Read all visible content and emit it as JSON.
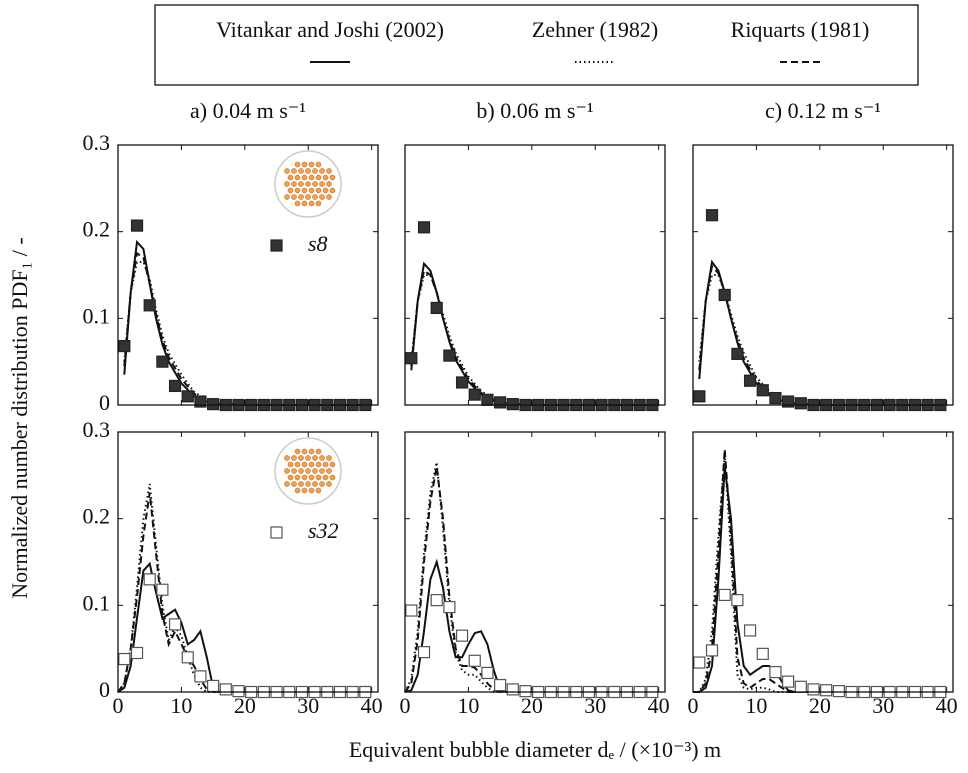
{
  "legend": [
    {
      "name": "Vitankar and Joshi (2002)",
      "style": "solid"
    },
    {
      "name": "Zehner (1982)",
      "style": "dotted"
    },
    {
      "name": "Riquarts (1981)",
      "style": "dashed"
    }
  ],
  "ylabel": "Normalized number distribution PDF₁ / -",
  "xlabel": "Equivalent bubble diameter dₑ / (×10⁻³) m",
  "chart_data": [
    {
      "type": "line",
      "title": "a) 0.04 m s⁻¹",
      "xlim": [
        0,
        41
      ],
      "ylim": [
        0,
        0.3
      ],
      "xticks": [
        0,
        10,
        20,
        30,
        40
      ],
      "yticks": [
        0,
        0.1,
        0.2,
        0.3
      ],
      "xtick_labels": false,
      "ytick_labels": true,
      "inset_icon": true,
      "markers": {
        "name": "s8",
        "fill": "#333333",
        "x": [
          1,
          3,
          5,
          7,
          9,
          11,
          13,
          15,
          17,
          19,
          21,
          23,
          25,
          27,
          29,
          31,
          33,
          35,
          37,
          39
        ],
        "values": [
          0.068,
          0.207,
          0.115,
          0.05,
          0.022,
          0.01,
          0.004,
          0.001,
          0,
          0,
          0,
          0,
          0,
          0,
          0,
          0,
          0,
          0,
          0,
          0
        ]
      },
      "series": [
        {
          "style": "solid",
          "x": [
            1,
            2,
            3,
            4,
            5,
            6,
            7,
            8,
            10,
            12,
            14,
            16,
            20,
            40
          ],
          "values": [
            0.035,
            0.13,
            0.188,
            0.18,
            0.14,
            0.1,
            0.07,
            0.05,
            0.025,
            0.01,
            0.004,
            0.001,
            0,
            0
          ]
        },
        {
          "style": "dotted",
          "x": [
            1,
            2,
            3,
            4,
            5,
            6,
            7,
            8,
            10,
            12,
            14,
            16,
            20,
            40
          ],
          "values": [
            0.05,
            0.13,
            0.165,
            0.165,
            0.145,
            0.11,
            0.08,
            0.06,
            0.035,
            0.015,
            0.006,
            0.002,
            0,
            0
          ]
        },
        {
          "style": "dashed",
          "x": [
            1,
            2,
            3,
            4,
            5,
            6,
            7,
            8,
            10,
            12,
            14,
            16,
            20,
            40
          ],
          "values": [
            0.045,
            0.13,
            0.175,
            0.17,
            0.14,
            0.105,
            0.075,
            0.055,
            0.03,
            0.013,
            0.005,
            0.002,
            0,
            0
          ]
        }
      ]
    },
    {
      "type": "line",
      "title": "b) 0.06 m s⁻¹",
      "xlim": [
        0,
        41
      ],
      "ylim": [
        0,
        0.3
      ],
      "xticks": [
        0,
        10,
        20,
        30,
        40
      ],
      "yticks": [
        0,
        0.1,
        0.2,
        0.3
      ],
      "xtick_labels": false,
      "ytick_labels": false,
      "inset_icon": false,
      "markers": {
        "fill": "#333333",
        "x": [
          1,
          3,
          5,
          7,
          9,
          11,
          13,
          15,
          17,
          19,
          21,
          23,
          25,
          27,
          29,
          31,
          33,
          35,
          37,
          39
        ],
        "values": [
          0.054,
          0.205,
          0.112,
          0.057,
          0.026,
          0.012,
          0.006,
          0.003,
          0.001,
          0,
          0,
          0,
          0,
          0,
          0,
          0,
          0,
          0,
          0,
          0
        ]
      },
      "series": [
        {
          "style": "solid",
          "x": [
            1,
            2,
            3,
            4,
            5,
            6,
            7,
            8,
            10,
            12,
            14,
            16,
            20,
            40
          ],
          "values": [
            0.04,
            0.12,
            0.163,
            0.155,
            0.13,
            0.1,
            0.073,
            0.052,
            0.027,
            0.012,
            0.005,
            0.002,
            0,
            0
          ]
        },
        {
          "style": "dotted",
          "x": [
            1,
            2,
            3,
            4,
            5,
            6,
            7,
            8,
            10,
            12,
            14,
            16,
            20,
            40
          ],
          "values": [
            0.05,
            0.12,
            0.15,
            0.15,
            0.13,
            0.105,
            0.08,
            0.06,
            0.033,
            0.016,
            0.007,
            0.003,
            0,
            0
          ]
        },
        {
          "style": "dashed",
          "x": [
            1,
            2,
            3,
            4,
            5,
            6,
            7,
            8,
            10,
            12,
            14,
            16,
            20,
            40
          ],
          "values": [
            0.045,
            0.12,
            0.155,
            0.15,
            0.13,
            0.1,
            0.075,
            0.055,
            0.03,
            0.014,
            0.006,
            0.002,
            0,
            0
          ]
        }
      ]
    },
    {
      "type": "line",
      "title": "c) 0.12 m s⁻¹",
      "xlim": [
        0,
        41
      ],
      "ylim": [
        0,
        0.3
      ],
      "xticks": [
        0,
        10,
        20,
        30,
        40
      ],
      "yticks": [
        0,
        0.1,
        0.2,
        0.3
      ],
      "xtick_labels": false,
      "ytick_labels": false,
      "inset_icon": false,
      "markers": {
        "fill": "#333333",
        "x": [
          1,
          3,
          5,
          7,
          9,
          11,
          13,
          15,
          17,
          19,
          21,
          23,
          25,
          27,
          29,
          31,
          33,
          35,
          37,
          39
        ],
        "values": [
          0.01,
          0.219,
          0.127,
          0.059,
          0.028,
          0.017,
          0.008,
          0.004,
          0.002,
          0,
          0,
          0,
          0,
          0,
          0,
          0,
          0,
          0,
          0,
          0
        ]
      },
      "series": [
        {
          "style": "solid",
          "x": [
            1,
            2,
            3,
            4,
            5,
            6,
            7,
            8,
            10,
            12,
            14,
            16,
            20,
            40
          ],
          "values": [
            0.03,
            0.12,
            0.165,
            0.155,
            0.13,
            0.1,
            0.072,
            0.05,
            0.025,
            0.012,
            0.005,
            0.002,
            0,
            0
          ]
        },
        {
          "style": "dotted",
          "x": [
            1,
            2,
            3,
            4,
            5,
            6,
            7,
            8,
            10,
            12,
            14,
            16,
            20,
            40
          ],
          "values": [
            0.05,
            0.12,
            0.15,
            0.15,
            0.13,
            0.105,
            0.08,
            0.06,
            0.032,
            0.016,
            0.007,
            0.003,
            0,
            0
          ]
        },
        {
          "style": "dashed",
          "x": [
            1,
            2,
            3,
            4,
            5,
            6,
            7,
            8,
            10,
            12,
            14,
            16,
            20,
            40
          ],
          "values": [
            0.04,
            0.12,
            0.16,
            0.152,
            0.13,
            0.1,
            0.075,
            0.054,
            0.028,
            0.013,
            0.006,
            0.002,
            0,
            0
          ]
        }
      ]
    },
    {
      "type": "line",
      "xlim": [
        0,
        41
      ],
      "ylim": [
        0,
        0.3
      ],
      "xticks": [
        0,
        10,
        20,
        30,
        40
      ],
      "yticks": [
        0,
        0.1,
        0.2,
        0.3
      ],
      "xtick_labels": true,
      "ytick_labels": true,
      "inset_icon": true,
      "markers": {
        "name": "s32",
        "fill": "#ffffff",
        "x": [
          1,
          3,
          5,
          7,
          9,
          11,
          13,
          15,
          17,
          19,
          21,
          23,
          25,
          27,
          29,
          31,
          33,
          35,
          37,
          39
        ],
        "values": [
          0.038,
          0.045,
          0.13,
          0.118,
          0.078,
          0.04,
          0.018,
          0.007,
          0.003,
          0.001,
          0,
          0,
          0,
          0,
          0,
          0,
          0,
          0,
          0,
          0
        ]
      },
      "series": [
        {
          "style": "solid",
          "x": [
            0,
            1,
            2,
            3,
            4,
            5,
            6,
            7,
            8,
            9,
            10,
            11,
            12,
            13,
            14,
            15,
            16,
            18,
            20,
            40
          ],
          "values": [
            0,
            0.005,
            0.03,
            0.085,
            0.14,
            0.148,
            0.115,
            0.085,
            0.09,
            0.095,
            0.08,
            0.055,
            0.06,
            0.07,
            0.04,
            0.005,
            0,
            0,
            0,
            0
          ]
        },
        {
          "style": "dotted",
          "x": [
            0,
            1,
            2,
            3,
            4,
            5,
            6,
            7,
            8,
            9,
            10,
            11,
            12,
            13,
            14,
            15,
            16,
            18,
            20,
            40
          ],
          "values": [
            0,
            0.01,
            0.05,
            0.12,
            0.2,
            0.24,
            0.17,
            0.1,
            0.06,
            0.075,
            0.065,
            0.04,
            0.02,
            0.005,
            0,
            0,
            0,
            0,
            0,
            0
          ]
        },
        {
          "style": "dashed",
          "x": [
            0,
            1,
            2,
            3,
            4,
            5,
            6,
            7,
            8,
            9,
            10,
            11,
            12,
            13,
            14,
            15,
            16,
            18,
            20,
            40
          ],
          "values": [
            0,
            0.01,
            0.05,
            0.11,
            0.18,
            0.23,
            0.16,
            0.09,
            0.055,
            0.07,
            0.055,
            0.04,
            0.03,
            0.015,
            0.003,
            0,
            0,
            0,
            0,
            0
          ]
        }
      ]
    },
    {
      "type": "line",
      "xlim": [
        0,
        41
      ],
      "ylim": [
        0,
        0.3
      ],
      "xticks": [
        0,
        10,
        20,
        30,
        40
      ],
      "yticks": [
        0,
        0.1,
        0.2,
        0.3
      ],
      "xtick_labels": true,
      "ytick_labels": false,
      "inset_icon": false,
      "markers": {
        "fill": "#ffffff",
        "x": [
          1,
          3,
          5,
          7,
          9,
          11,
          13,
          15,
          17,
          19,
          21,
          23,
          25,
          27,
          29,
          31,
          33,
          35,
          37,
          39
        ],
        "values": [
          0.094,
          0.046,
          0.106,
          0.098,
          0.065,
          0.036,
          0.022,
          0.008,
          0.003,
          0.001,
          0,
          0,
          0,
          0,
          0,
          0,
          0,
          0,
          0,
          0
        ]
      },
      "series": [
        {
          "style": "solid",
          "x": [
            0,
            1,
            2,
            3,
            4,
            5,
            6,
            7,
            8,
            9,
            10,
            11,
            12,
            13,
            14,
            15,
            16,
            18,
            20,
            40
          ],
          "values": [
            0,
            0.002,
            0.02,
            0.07,
            0.13,
            0.15,
            0.12,
            0.07,
            0.04,
            0.04,
            0.055,
            0.068,
            0.07,
            0.055,
            0.025,
            0.003,
            0,
            0,
            0,
            0
          ]
        },
        {
          "style": "dotted",
          "x": [
            0,
            1,
            2,
            3,
            4,
            5,
            6,
            7,
            8,
            9,
            10,
            11,
            12,
            13,
            14,
            15,
            16,
            18,
            20,
            40
          ],
          "values": [
            0,
            0.015,
            0.07,
            0.16,
            0.23,
            0.265,
            0.19,
            0.1,
            0.045,
            0.025,
            0.02,
            0.02,
            0.012,
            0.005,
            0,
            0,
            0,
            0,
            0,
            0
          ]
        },
        {
          "style": "dashed",
          "x": [
            0,
            1,
            2,
            3,
            4,
            5,
            6,
            7,
            8,
            9,
            10,
            11,
            12,
            13,
            14,
            15,
            16,
            18,
            20,
            40
          ],
          "values": [
            0,
            0.01,
            0.06,
            0.15,
            0.22,
            0.26,
            0.2,
            0.11,
            0.05,
            0.03,
            0.03,
            0.028,
            0.02,
            0.01,
            0.003,
            0,
            0,
            0,
            0,
            0
          ]
        }
      ]
    },
    {
      "type": "line",
      "xlim": [
        0,
        41
      ],
      "ylim": [
        0,
        0.3
      ],
      "xticks": [
        0,
        10,
        20,
        30,
        40
      ],
      "yticks": [
        0,
        0.1,
        0.2,
        0.3
      ],
      "xtick_labels": true,
      "ytick_labels": false,
      "inset_icon": false,
      "markers": {
        "fill": "#ffffff",
        "x": [
          1,
          3,
          5,
          7,
          9,
          11,
          13,
          15,
          17,
          19,
          21,
          23,
          25,
          27,
          29,
          31,
          33,
          35,
          37,
          39
        ],
        "values": [
          0.034,
          0.048,
          0.112,
          0.106,
          0.071,
          0.044,
          0.023,
          0.012,
          0.006,
          0.003,
          0.002,
          0.001,
          0,
          0,
          0,
          0,
          0,
          0,
          0,
          0
        ]
      },
      "series": [
        {
          "style": "solid",
          "x": [
            0,
            1,
            2,
            3,
            4,
            5,
            6,
            7,
            8,
            9,
            10,
            11,
            12,
            13,
            14,
            15,
            16,
            18,
            20,
            40
          ],
          "values": [
            0,
            0,
            0.005,
            0.03,
            0.13,
            0.26,
            0.2,
            0.08,
            0.03,
            0.02,
            0.025,
            0.03,
            0.03,
            0.025,
            0.012,
            0.002,
            0,
            0,
            0,
            0
          ]
        },
        {
          "style": "dotted",
          "x": [
            0,
            1,
            2,
            3,
            4,
            5,
            6,
            7,
            8,
            9,
            10,
            11,
            12,
            13,
            14,
            15,
            16,
            18,
            20,
            40
          ],
          "values": [
            0,
            0,
            0.015,
            0.07,
            0.18,
            0.275,
            0.16,
            0.02,
            0.005,
            0.003,
            0.005,
            0.005,
            0.003,
            0,
            0,
            0,
            0,
            0,
            0,
            0
          ]
        },
        {
          "style": "dashed",
          "x": [
            0,
            1,
            2,
            3,
            4,
            5,
            6,
            7,
            8,
            9,
            10,
            11,
            12,
            13,
            14,
            15,
            16,
            18,
            20,
            40
          ],
          "values": [
            0,
            0,
            0.01,
            0.05,
            0.16,
            0.28,
            0.18,
            0.04,
            0.01,
            0.005,
            0.01,
            0.015,
            0.015,
            0.01,
            0.005,
            0,
            0,
            0,
            0,
            0
          ]
        }
      ]
    }
  ]
}
